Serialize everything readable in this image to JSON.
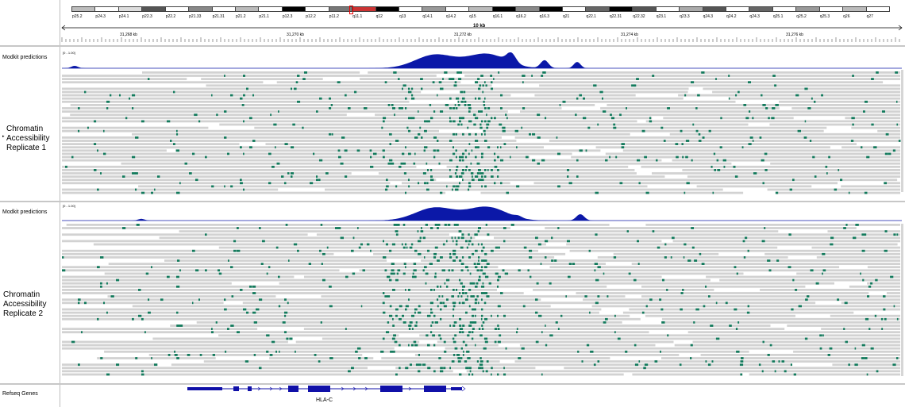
{
  "ideogram": {
    "bands": [
      "p25.2",
      "p24.3",
      "p24.1",
      "p22.3",
      "p22.2",
      "p21.33",
      "p21.31",
      "p21.2",
      "p21.1",
      "p12.3",
      "p12.2",
      "p11.2",
      "q11.1",
      "q12",
      "q13",
      "q14.1",
      "q14.2",
      "q15",
      "q16.1",
      "q16.2",
      "q16.3",
      "q21",
      "q22.1",
      "q22.31",
      "q22.32",
      "q23.1",
      "q23.3",
      "q24.3",
      "q24.2",
      "q24.3",
      "q25.1",
      "q25.2",
      "q25.3",
      "q26",
      "q27"
    ]
  },
  "ruler": {
    "scale_label": "10 kb",
    "ticks": [
      "31,268 kb",
      "31,270 kb",
      "31,272 kb",
      "31,274 kb",
      "31,276 kb"
    ]
  },
  "tracks": [
    {
      "coverage_name": "Modkit predictions",
      "data_range": "[0 - 1.00]",
      "reads_name": "Chromatin Accessibility Replicate 1",
      "reads_lines": [
        "Chromatin",
        "Accessibility",
        "Replicate 1"
      ]
    },
    {
      "coverage_name": "Modkit predictions",
      "data_range": "[0 - 1.00]",
      "reads_name": "Chromatin Accessibility Replicate 2",
      "reads_lines": [
        "Chromatin",
        "Accessibility",
        "Replicate 2"
      ]
    }
  ],
  "genes_track": {
    "name": "Refseq Genes",
    "gene": "HLA-C"
  },
  "colors": {
    "coverage": "#0b18a8",
    "read": "#d2d2d2",
    "mark": "#137a5c"
  }
}
